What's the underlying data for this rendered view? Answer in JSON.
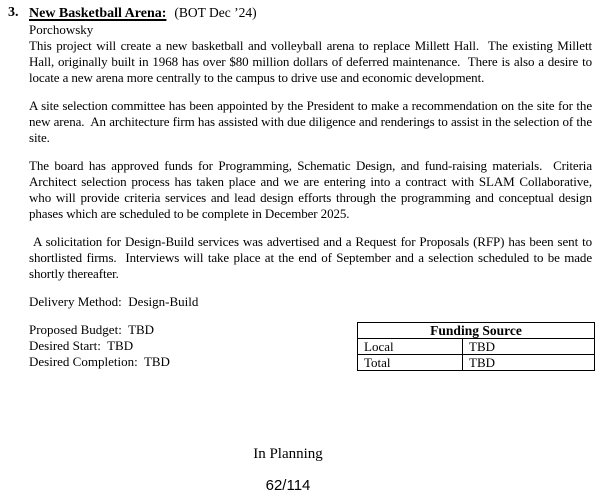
{
  "document": {
    "item_number": "3.",
    "title": "New Basketball Arena:",
    "title_suffix": "(BOT Dec ’24)",
    "author": "Porchowsky",
    "paragraphs": [
      "This project will create a new basketball and volleyball arena to replace Millett Hall.  The existing Millett Hall, originally built in 1968 has over $80 million dollars of deferred maintenance.  There is also a desire to locate a new arena more centrally to the campus to drive use and economic development.",
      "A site selection committee has been appointed by the President to make a recommendation on the site for the new arena.  An architecture firm has assisted with due diligence and renderings to assist in the selection of the site.",
      "The board has approved funds for Programming, Schematic Design, and fund-raising materials.  Criteria Architect selection process has taken place and we are entering into a contract with SLAM Collaborative, who will provide criteria services and lead design efforts through the programming and conceptual design phases which are scheduled to be complete in December 2025.",
      " A solicitation for Design-Build services was advertised and a Request for Proposals (RFP) has been sent to shortlisted firms.  Interviews will take place at the end of September and a selection scheduled to be made shortly thereafter."
    ],
    "delivery_method": "Delivery Method:  Design-Build",
    "budget": {
      "proposed_budget": "Proposed Budget:  TBD",
      "desired_start": "Desired Start:  TBD",
      "desired_completion": "Desired Completion:  TBD"
    },
    "funding_table": {
      "title": "Funding Source",
      "rows": [
        {
          "label": "Local",
          "value": "TBD"
        },
        {
          "label": "Total",
          "value": "TBD"
        }
      ]
    },
    "status": "In Planning",
    "page_indicator": "62/114",
    "colors": {
      "text": "#000000",
      "background": "#ffffff",
      "table_border": "#000000"
    }
  }
}
